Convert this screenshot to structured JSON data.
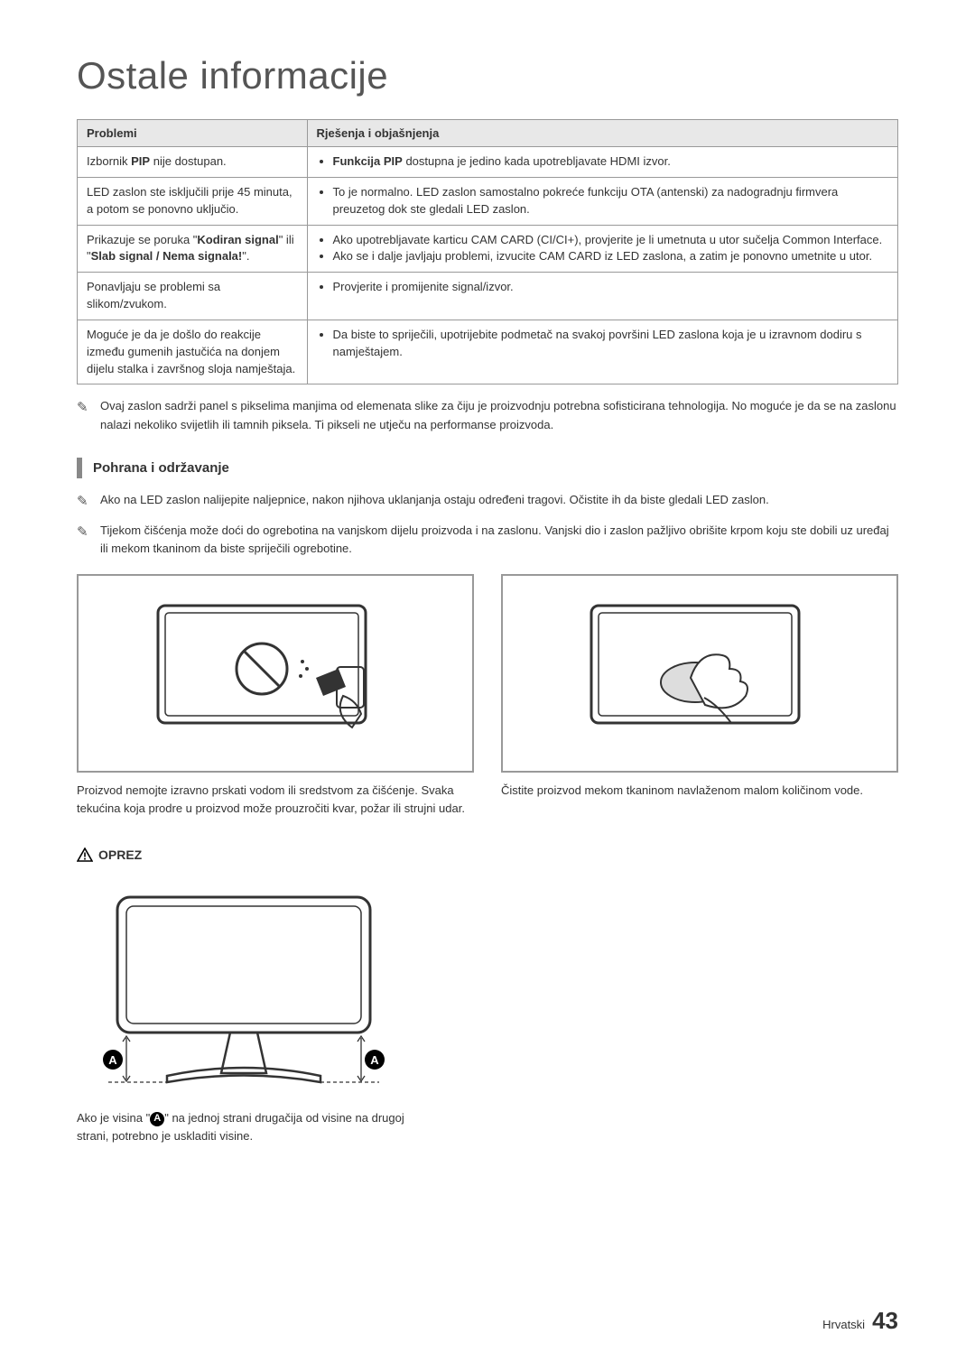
{
  "title": "Ostale informacije",
  "table": {
    "header": {
      "col1": "Problemi",
      "col2": "Rješenja i objašnjenja"
    },
    "rows": [
      {
        "problem_prefix": "Izbornik ",
        "problem_bold": "PIP",
        "problem_suffix": " nije dostupan.",
        "items": [
          {
            "bold": "Funkcija PIP",
            "rest": " dostupna je jedino kada upotrebljavate HDMI izvor."
          }
        ]
      },
      {
        "problem_plain": "LED zaslon ste isključili prije 45 minuta, a potom se ponovno uključio.",
        "items": [
          {
            "text": "To je normalno. LED zaslon samostalno pokreće funkciju OTA (antenski) za nadogradnju firmvera preuzetog dok ste gledali LED zaslon."
          }
        ]
      },
      {
        "problem_html_parts": [
          "Prikazuje se poruka \"",
          "Kodiran signal",
          "\" ili \"",
          "Slab signal / Nema signala!",
          "\"."
        ],
        "items": [
          {
            "text": "Ako upotrebljavate karticu CAM CARD (CI/CI+), provjerite je li umetnuta u utor sučelja Common Interface."
          },
          {
            "text": "Ako se i dalje javljaju problemi, izvucite CAM CARD iz LED zaslona, a zatim je ponovno umetnite u utor."
          }
        ]
      },
      {
        "problem_plain": "Ponavljaju se problemi sa slikom/zvukom.",
        "items": [
          {
            "text": "Provjerite i promijenite signal/izvor."
          }
        ]
      },
      {
        "problem_plain": "Moguće je da je došlo do reakcije između gumenih jastučića na donjem dijelu stalka i završnog sloja namještaja.",
        "items": [
          {
            "text": "Da biste to spriječili, upotrijebite podmetač na svakoj površini LED zaslona koja je u izravnom dodiru s namještajem."
          }
        ]
      }
    ]
  },
  "notes": {
    "n1": "Ovaj zaslon sadrži panel s pikselima manjima od elemenata slike za čiju je proizvodnju potrebna sofisticirana tehnologija. No moguće je da se na zaslonu nalazi nekoliko svijetlih ili tamnih piksela. Ti pikseli ne utječu na performanse proizvoda."
  },
  "section_heading": "Pohrana i održavanje",
  "section_notes": {
    "n2": "Ako na LED zaslon nalijepite naljepnice, nakon njihova uklanjanja ostaju određeni tragovi. Očistite ih da biste gledali LED zaslon.",
    "n3": "Tijekom čišćenja može doći do ogrebotina na vanjskom dijelu proizvoda i na zaslonu. Vanjski dio i zaslon pažljivo obrišite krpom koju ste dobili uz uređaj ili mekom tkaninom da biste spriječili ogrebotine."
  },
  "images": {
    "left_caption": "Proizvod nemojte izravno prskati vodom ili sredstvom za čišćenje. Svaka tekućina koja prodre u proizvod može prouzročiti kvar, požar ili strujni udar.",
    "right_caption": "Čistite proizvod mekom tkaninom navlaženom malom količinom vode."
  },
  "caution": {
    "label": "OPREZ",
    "marker": "A",
    "caption_pre": "Ako je visina \"",
    "caption_post": "\" na jednoj strani drugačija od visine na drugoj strani, potrebno je uskladiti visine."
  },
  "footer": {
    "lang": "Hrvatski",
    "page": "43"
  },
  "colors": {
    "border": "#999999",
    "header_bg": "#e8e8e8",
    "text": "#333333"
  }
}
